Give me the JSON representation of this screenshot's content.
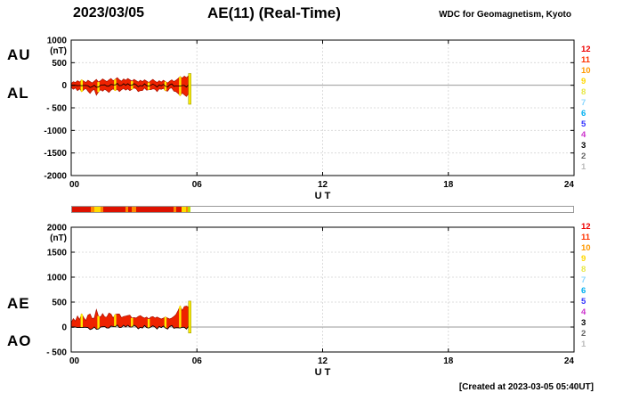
{
  "header": {
    "date": "2023/03/05",
    "title": "AE(11) (Real-Time)",
    "source": "WDC for Geomagnetism, Kyoto"
  },
  "footer": {
    "created": "[Created at 2023-03-05 05:40UT]"
  },
  "stations": {
    "numbers": [
      12,
      11,
      10,
      9,
      8,
      7,
      6,
      5,
      4,
      3,
      2,
      1
    ],
    "colors": [
      "#ee0000",
      "#ff3300",
      "#ff9900",
      "#ffd800",
      "#e8e84a",
      "#8fd8ff",
      "#00b0f0",
      "#3333ff",
      "#cc33cc",
      "#000000",
      "#666666",
      "#bbbbbb"
    ]
  },
  "activity_strip": {
    "segments": [
      {
        "start": 0,
        "end": 0.9,
        "color": "#dd1100"
      },
      {
        "start": 0.9,
        "end": 1.05,
        "color": "#ff8800"
      },
      {
        "start": 1.05,
        "end": 1.35,
        "color": "#ffdd00"
      },
      {
        "start": 1.35,
        "end": 1.5,
        "color": "#ff8800"
      },
      {
        "start": 1.5,
        "end": 2.55,
        "color": "#dd1100"
      },
      {
        "start": 2.55,
        "end": 2.7,
        "color": "#ff8800"
      },
      {
        "start": 2.7,
        "end": 2.85,
        "color": "#dd1100"
      },
      {
        "start": 2.85,
        "end": 3.05,
        "color": "#ff8800"
      },
      {
        "start": 3.05,
        "end": 4.85,
        "color": "#dd1100"
      },
      {
        "start": 4.85,
        "end": 5.0,
        "color": "#ff8800"
      },
      {
        "start": 5.0,
        "end": 5.25,
        "color": "#dd1100"
      },
      {
        "start": 5.25,
        "end": 5.45,
        "color": "#ffdd00"
      },
      {
        "start": 5.45,
        "end": 5.55,
        "color": "#ff8800"
      },
      {
        "start": 5.55,
        "end": 5.67,
        "color": "#bbdd00"
      }
    ]
  },
  "chart_data": [
    {
      "type": "area",
      "left_labels": [
        "AU",
        "AL"
      ],
      "xlabel": "U T",
      "ylabel": "(nT)",
      "xlim": [
        0,
        24
      ],
      "ylim": [
        -2000,
        1000
      ],
      "xticks": [
        0,
        6,
        12,
        18,
        24
      ],
      "xtick_labels": [
        "00",
        "06",
        "12",
        "18",
        "24"
      ],
      "yticks": [
        1000,
        500,
        0,
        -500,
        -1000,
        -1500,
        -2000
      ],
      "ytick_labels": [
        "1000",
        "500",
        "0",
        "- 500",
        "-1000",
        "-1500",
        "-2000"
      ],
      "fill_color": "#ee2200",
      "accent_color": "#ffee00",
      "dark_line": "mid",
      "x": [
        0,
        0.1,
        0.2,
        0.3,
        0.4,
        0.5,
        0.6,
        0.7,
        0.8,
        0.9,
        1,
        1.1,
        1.2,
        1.3,
        1.4,
        1.5,
        1.6,
        1.7,
        1.8,
        1.9,
        2,
        2.1,
        2.2,
        2.3,
        2.4,
        2.5,
        2.6,
        2.7,
        2.8,
        2.9,
        3,
        3.1,
        3.2,
        3.3,
        3.4,
        3.5,
        3.6,
        3.7,
        3.8,
        3.9,
        4,
        4.1,
        4.2,
        4.3,
        4.4,
        4.5,
        4.6,
        4.7,
        4.8,
        4.9,
        5,
        5.1,
        5.2,
        5.3,
        5.4,
        5.5,
        5.6
      ],
      "series": [
        {
          "name": "AU",
          "values": [
            40,
            80,
            60,
            100,
            70,
            120,
            90,
            60,
            110,
            80,
            50,
            90,
            130,
            70,
            100,
            140,
            110,
            80,
            120,
            150,
            100,
            130,
            170,
            120,
            90,
            140,
            110,
            150,
            120,
            90,
            130,
            100,
            70,
            110,
            80,
            120,
            90,
            60,
            100,
            130,
            90,
            60,
            100,
            70,
            110,
            80,
            50,
            90,
            120,
            80,
            110,
            150,
            190,
            160,
            200,
            170,
            210
          ]
        },
        {
          "name": "AL",
          "values": [
            -50,
            -90,
            -60,
            -120,
            -80,
            -140,
            -100,
            -70,
            -130,
            -180,
            -120,
            -90,
            -220,
            -150,
            -100,
            -130,
            -90,
            -120,
            -160,
            -110,
            -80,
            -120,
            -90,
            -140,
            -100,
            -70,
            -110,
            -80,
            -120,
            -90,
            -60,
            -80,
            -140,
            -120,
            -120,
            -60,
            -110,
            -100,
            -100,
            -80,
            -90,
            -140,
            -80,
            -90,
            -70,
            -120,
            -130,
            -70,
            -60,
            -130,
            -140,
            -180,
            -230,
            -170,
            -210,
            -250,
            -190
          ]
        }
      ],
      "highlight_times": [
        0.5,
        1.3,
        2.1,
        2.9,
        3.7,
        4.5,
        5.2
      ],
      "end_bar": {
        "t0": 5.6,
        "t1": 5.72,
        "y0": -420,
        "y1": 260
      }
    },
    {
      "type": "area",
      "left_labels": [
        "AE",
        "AO"
      ],
      "xlabel": "U T",
      "ylabel": "(nT)",
      "xlim": [
        0,
        24
      ],
      "ylim": [
        -500,
        2000
      ],
      "xticks": [
        0,
        6,
        12,
        18,
        24
      ],
      "xtick_labels": [
        "00",
        "06",
        "12",
        "18",
        "24"
      ],
      "yticks": [
        2000,
        1500,
        1000,
        500,
        0,
        -500
      ],
      "ytick_labels": [
        "2000",
        "1500",
        "1000",
        "500",
        "0",
        "- 500"
      ],
      "fill_color": "#ee2200",
      "accent_color": "#ffee00",
      "dark_line": "lower",
      "x": [
        0,
        0.1,
        0.2,
        0.3,
        0.4,
        0.5,
        0.6,
        0.7,
        0.8,
        0.9,
        1,
        1.1,
        1.2,
        1.3,
        1.4,
        1.5,
        1.6,
        1.7,
        1.8,
        1.9,
        2,
        2.1,
        2.2,
        2.3,
        2.4,
        2.5,
        2.6,
        2.7,
        2.8,
        2.9,
        3,
        3.1,
        3.2,
        3.3,
        3.4,
        3.5,
        3.6,
        3.7,
        3.8,
        3.9,
        4,
        4.1,
        4.2,
        4.3,
        4.4,
        4.5,
        4.6,
        4.7,
        4.8,
        4.9,
        5,
        5.1,
        5.2,
        5.3,
        5.4,
        5.5,
        5.6
      ],
      "series": [
        {
          "name": "AE",
          "values": [
            90,
            170,
            120,
            220,
            150,
            260,
            190,
            130,
            240,
            260,
            170,
            180,
            350,
            220,
            200,
            270,
            200,
            200,
            280,
            260,
            180,
            250,
            260,
            260,
            190,
            210,
            220,
            230,
            240,
            180,
            190,
            180,
            210,
            230,
            200,
            180,
            200,
            160,
            200,
            210,
            180,
            200,
            180,
            160,
            180,
            200,
            180,
            160,
            180,
            210,
            250,
            330,
            420,
            330,
            410,
            420,
            400
          ]
        },
        {
          "name": "AO",
          "values": [
            -5,
            -5,
            0,
            -10,
            -5,
            -10,
            -5,
            -5,
            -10,
            -50,
            -35,
            0,
            -45,
            -40,
            0,
            5,
            10,
            -20,
            -20,
            20,
            10,
            5,
            40,
            -10,
            -5,
            35,
            0,
            35,
            0,
            0,
            35,
            10,
            -35,
            -5,
            -20,
            30,
            -10,
            -20,
            0,
            25,
            0,
            -40,
            10,
            -10,
            20,
            -20,
            -40,
            10,
            30,
            -25,
            -15,
            -15,
            -20,
            -5,
            -5,
            -40,
            10
          ]
        }
      ],
      "highlight_times": [
        0.5,
        1.3,
        2.1,
        2.9,
        3.7,
        4.5,
        5.2
      ],
      "end_bar": {
        "t0": 5.6,
        "t1": 5.72,
        "y0": -120,
        "y1": 520
      }
    }
  ]
}
